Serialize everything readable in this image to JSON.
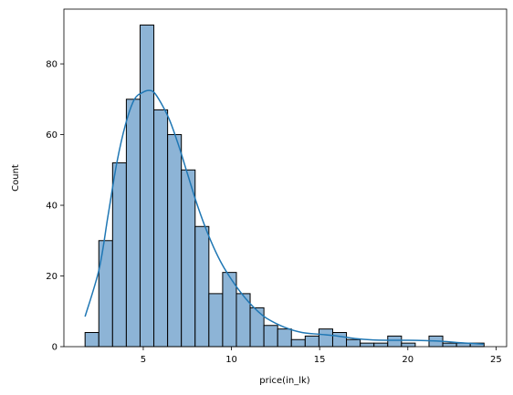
{
  "chart_data": {
    "type": "bar",
    "subtype": "histogram_with_kde",
    "xlabel": "price(in_lk)",
    "ylabel": "Count",
    "xlim": [
      0.5,
      25.6
    ],
    "ylim": [
      0,
      95.5
    ],
    "xticks": [
      5,
      10,
      15,
      20,
      25
    ],
    "yticks": [
      0,
      20,
      40,
      60,
      80
    ],
    "bins": {
      "start": 1.7,
      "width": 0.78,
      "counts": [
        4,
        30,
        52,
        70,
        91,
        67,
        60,
        50,
        34,
        15,
        21,
        15,
        11,
        6,
        5,
        2,
        3,
        5,
        4,
        2,
        1,
        1,
        3,
        1,
        0,
        3,
        1,
        1,
        1
      ]
    },
    "kde": {
      "x": [
        1.7,
        2.5,
        3.0,
        3.5,
        4.0,
        4.5,
        5.0,
        5.3,
        5.6,
        6.0,
        6.5,
        7.0,
        7.5,
        8.0,
        8.5,
        9.0,
        9.5,
        10.0,
        10.5,
        11.0,
        11.5,
        12.0,
        13.0,
        14.0,
        15.0,
        16.0,
        17.0,
        18.0,
        19.0,
        20.0,
        21.0,
        22.0,
        23.0,
        24.3
      ],
      "y": [
        8.5,
        22,
        37,
        52,
        63,
        70,
        72,
        72.5,
        72,
        69,
        64,
        57,
        49,
        41,
        34,
        28,
        23,
        19,
        15.5,
        12.5,
        10,
        8,
        5.5,
        4,
        3.5,
        3,
        2.3,
        1.9,
        1.8,
        1.8,
        1.7,
        1.5,
        1.1,
        0.7
      ]
    },
    "bar_color": "#8db4d6",
    "bar_edge_color": "#000000",
    "kde_color": "#1f77b4",
    "grid": false
  }
}
